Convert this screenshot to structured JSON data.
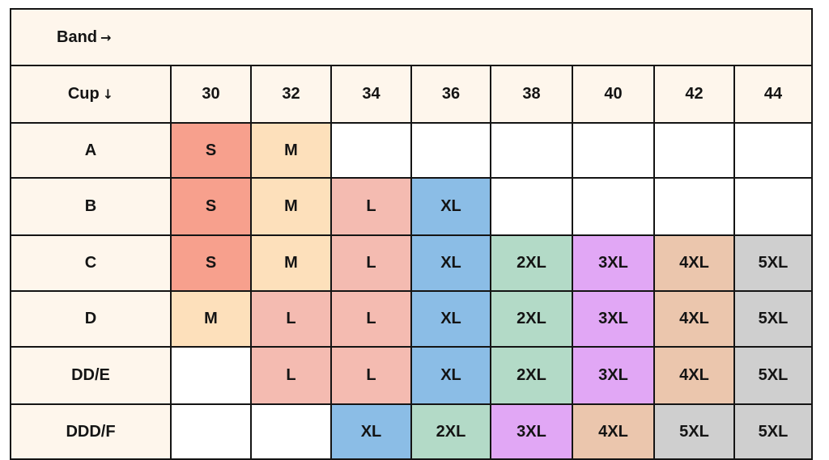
{
  "band_header": {
    "label": "Band",
    "arrow": "→",
    "arrow_icon": "arrow-right-icon"
  },
  "cup_header": {
    "label": "Cup",
    "arrow": "↓",
    "arrow_icon": "arrow-down-icon"
  },
  "bands": [
    "30",
    "32",
    "34",
    "36",
    "38",
    "40",
    "42",
    "44"
  ],
  "header_color": "#fef6ec",
  "size_colors": {
    "S": "#f7a08d",
    "M": "#fde0bb",
    "L": "#f4bbb1",
    "XL": "#8bbde6",
    "2XL": "#b3dac7",
    "3XL": "#e1a7f5",
    "4XL": "#ebc6ad",
    "5XL": "#cfcfcf",
    "": "#ffffff"
  },
  "rows": [
    {
      "cup": "A",
      "sizes": [
        "S",
        "M",
        "",
        "",
        "",
        "",
        "",
        ""
      ]
    },
    {
      "cup": "B",
      "sizes": [
        "S",
        "M",
        "L",
        "XL",
        "",
        "",
        "",
        ""
      ]
    },
    {
      "cup": "C",
      "sizes": [
        "S",
        "M",
        "L",
        "XL",
        "2XL",
        "3XL",
        "4XL",
        "5XL"
      ]
    },
    {
      "cup": "D",
      "sizes": [
        "M",
        "L",
        "L",
        "XL",
        "2XL",
        "3XL",
        "4XL",
        "5XL"
      ]
    },
    {
      "cup": "DD/E",
      "sizes": [
        "",
        "L",
        "L",
        "XL",
        "2XL",
        "3XL",
        "4XL",
        "5XL"
      ]
    },
    {
      "cup": "DDD/F",
      "sizes": [
        "",
        "",
        "XL",
        "2XL",
        "3XL",
        "4XL",
        "5XL",
        "5XL"
      ]
    }
  ]
}
